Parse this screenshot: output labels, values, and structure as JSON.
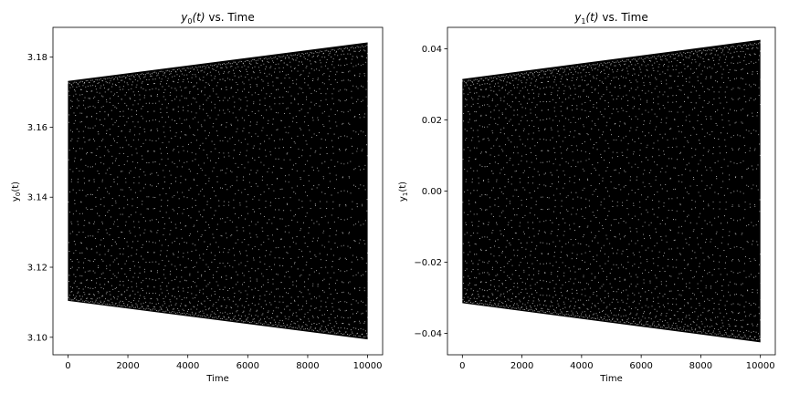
{
  "chart_data": [
    {
      "type": "scatter",
      "title": "y0(t) vs. Time",
      "title_parts": {
        "var": "y",
        "sub": "0",
        "arg": "(t)",
        "rest": " vs. Time"
      },
      "xlabel": "Time",
      "ylabel": "y0(t)",
      "ylabel_parts": {
        "var": "y",
        "sub": "0",
        "arg": "(t)"
      },
      "xlim": [
        -500,
        10500
      ],
      "ylim": [
        3.095,
        3.1885
      ],
      "xticks": [
        0,
        2000,
        4000,
        6000,
        8000,
        10000
      ],
      "xtick_labels": [
        "0",
        "2000",
        "4000",
        "6000",
        "8000",
        "10000"
      ],
      "yticks": [
        3.1,
        3.12,
        3.14,
        3.16,
        3.18
      ],
      "ytick_labels": [
        "3.10",
        "3.12",
        "3.14",
        "3.16",
        "3.18"
      ],
      "grid": false,
      "color": "#000000",
      "envelope": {
        "t": [
          0,
          10000
        ],
        "upper": [
          3.1732,
          3.1842
        ],
        "lower": [
          3.1104,
          3.0994
        ]
      }
    },
    {
      "type": "scatter",
      "title": "y1(t) vs. Time",
      "title_parts": {
        "var": "y",
        "sub": "1",
        "arg": "(t)",
        "rest": " vs. Time"
      },
      "xlabel": "Time",
      "ylabel": "y1(t)",
      "ylabel_parts": {
        "var": "y",
        "sub": "1",
        "arg": "(t)"
      },
      "xlim": [
        -500,
        10500
      ],
      "ylim": [
        -0.046,
        0.046
      ],
      "xticks": [
        0,
        2000,
        4000,
        6000,
        8000,
        10000
      ],
      "xtick_labels": [
        "0",
        "2000",
        "4000",
        "6000",
        "8000",
        "10000"
      ],
      "yticks": [
        -0.04,
        -0.02,
        0.0,
        0.02,
        0.04
      ],
      "ytick_labels": [
        "−0.04",
        "−0.02",
        "0.00",
        "0.02",
        "0.04"
      ],
      "grid": false,
      "color": "#000000",
      "envelope": {
        "t": [
          0,
          10000
        ],
        "upper": [
          0.0315,
          0.0425
        ],
        "lower": [
          -0.0315,
          -0.0425
        ]
      }
    }
  ]
}
